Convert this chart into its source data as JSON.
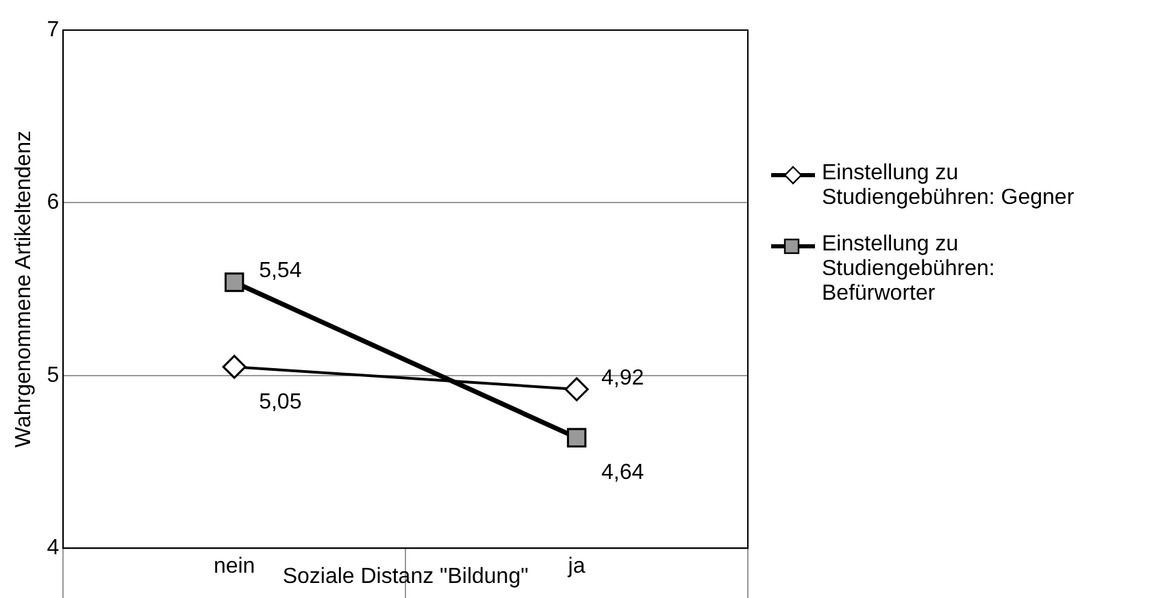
{
  "chart_data": {
    "type": "line",
    "xlabel": "Soziale Distanz \"Bildung\"",
    "ylabel": "Wahrgenommene Artikeltendenz",
    "categories": [
      "nein",
      "ja"
    ],
    "series": [
      {
        "name": "Einstellung zu Studiengebühren: Gegner",
        "color": "#000000",
        "marker": "diamond",
        "values": [
          5.05,
          4.92
        ],
        "value_labels": [
          "5,05",
          "4,92"
        ]
      },
      {
        "name": "Einstellung zu Studiengebühren: Befürworter",
        "color": "#000000",
        "marker": "square",
        "values": [
          5.54,
          4.64
        ],
        "value_labels": [
          "5,54",
          "4,64"
        ]
      }
    ],
    "ylim": [
      4,
      7
    ],
    "yticks": [
      4,
      5,
      6,
      7
    ],
    "grid": "y",
    "legend": "right"
  }
}
